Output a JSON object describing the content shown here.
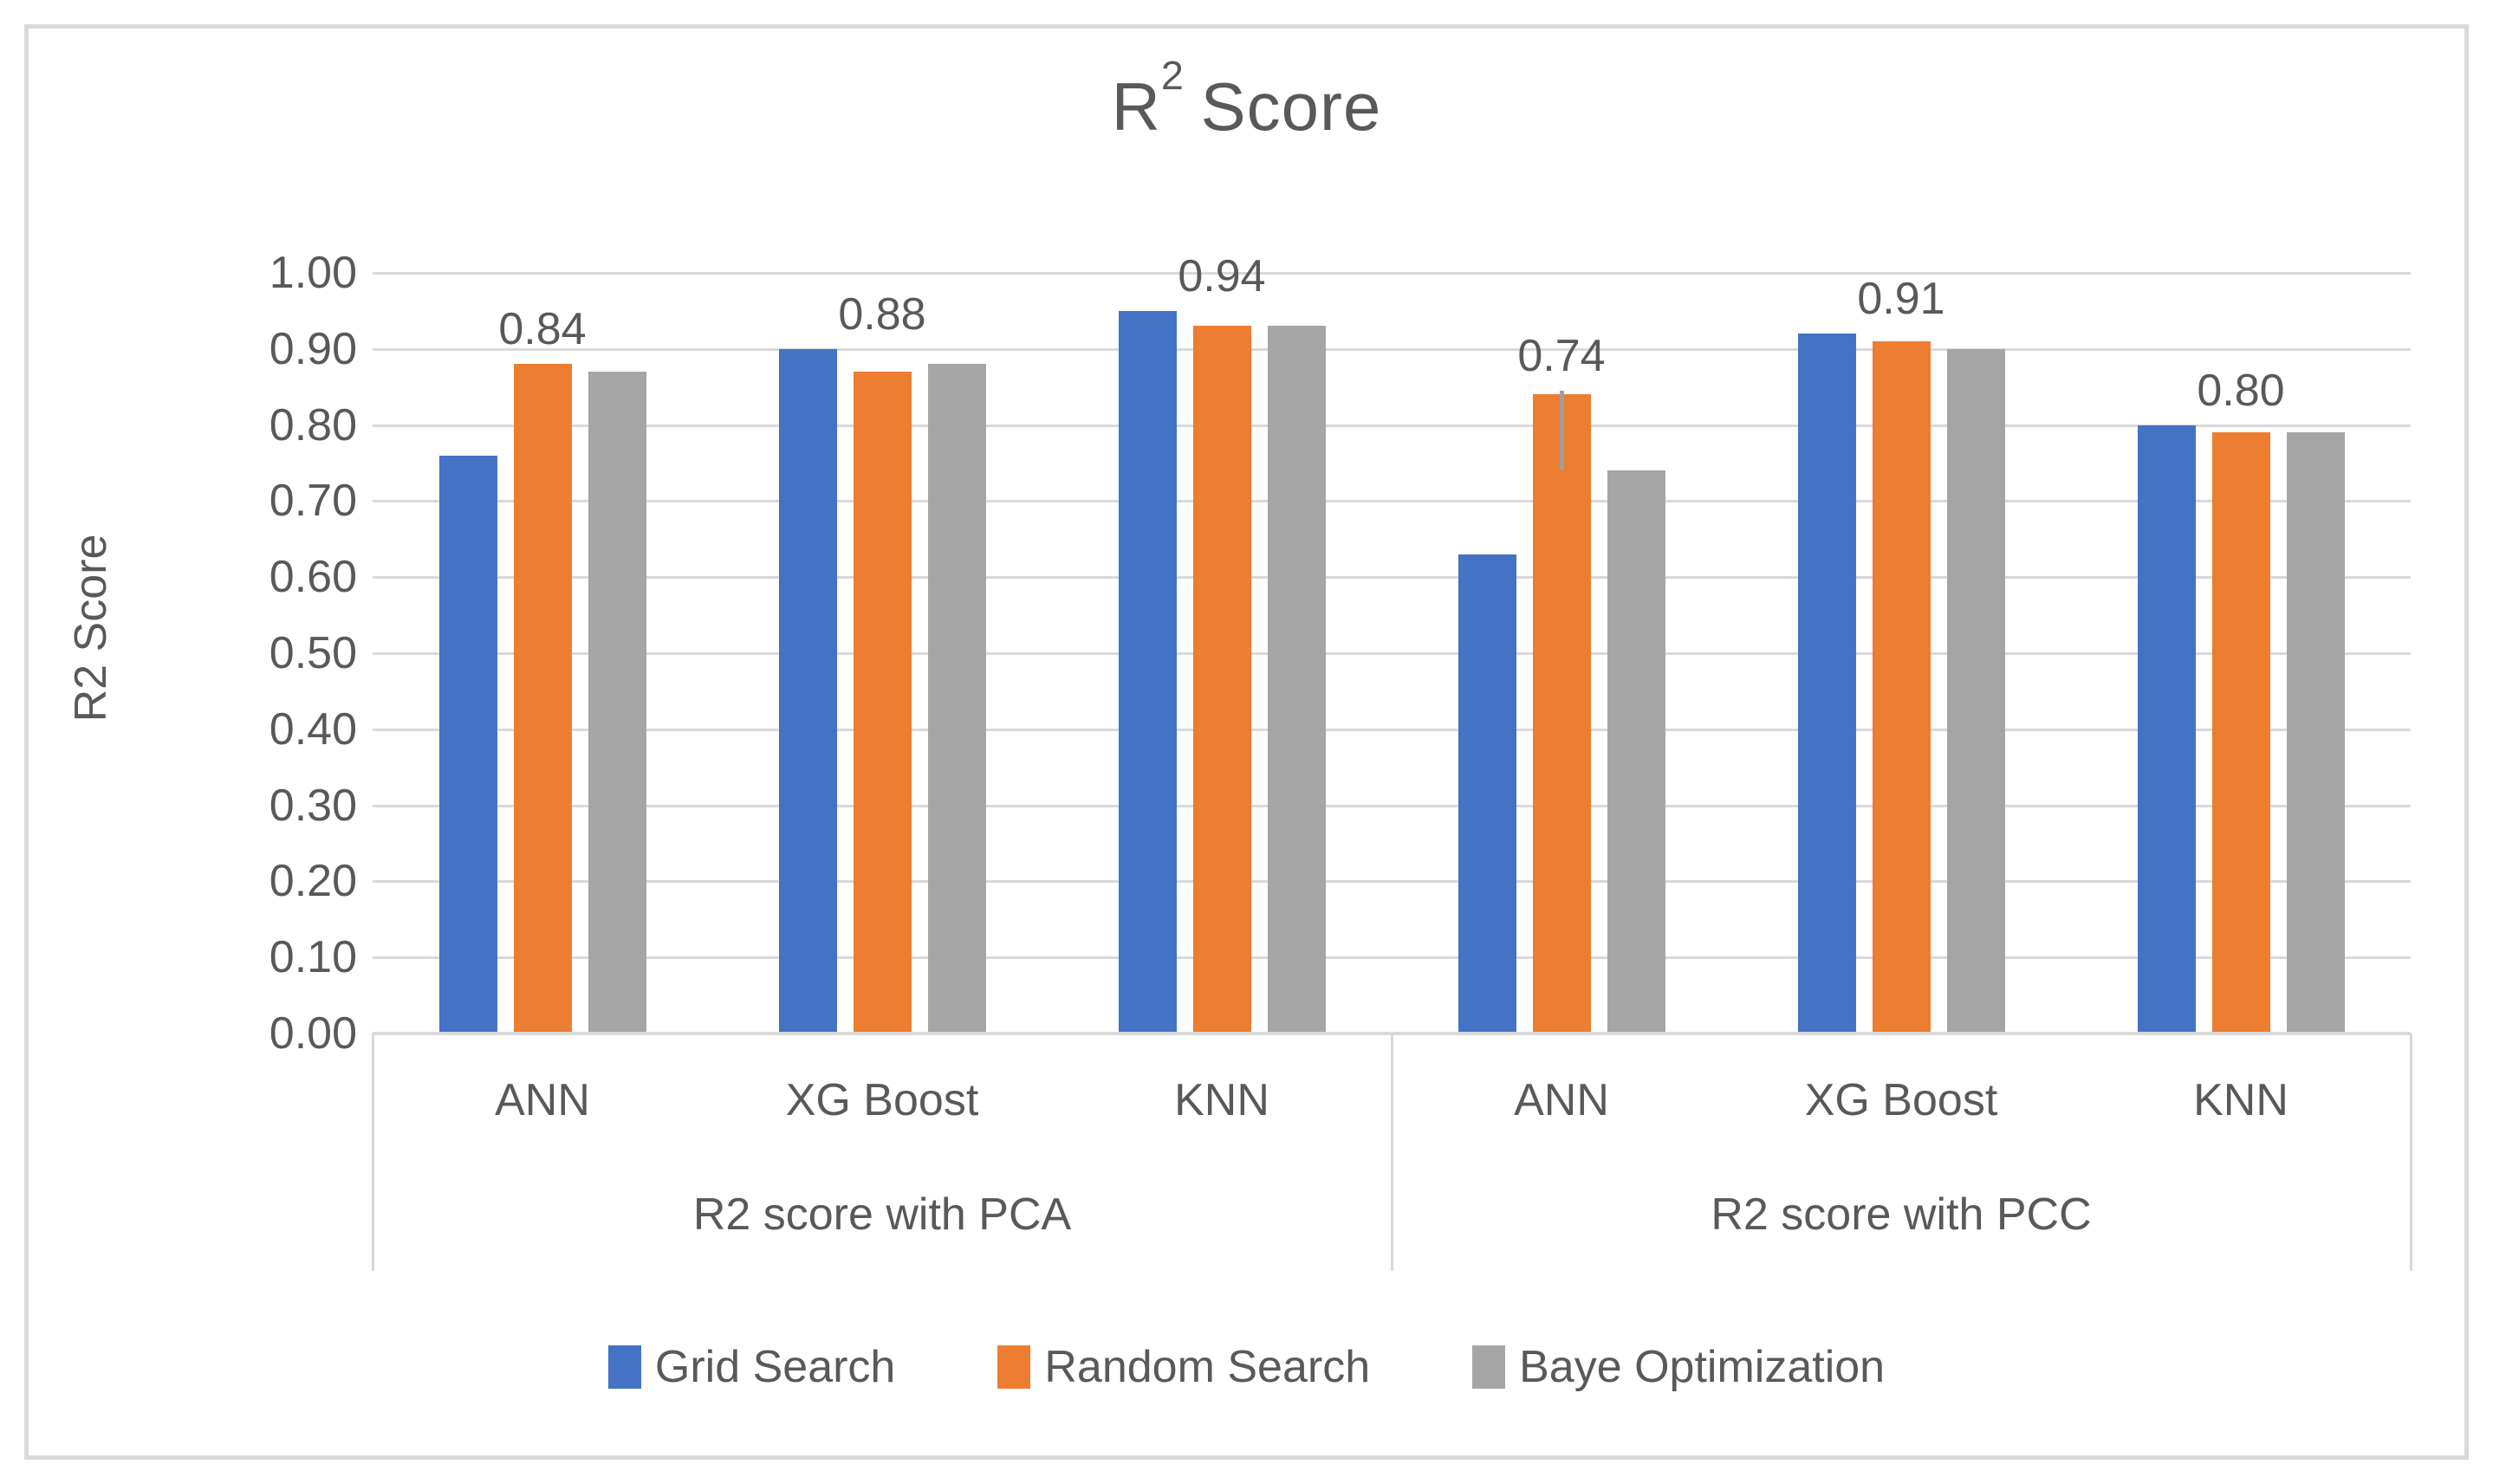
{
  "title_parts": {
    "base": "R",
    "sup": "2",
    "rest": "Score"
  },
  "chart_data": {
    "type": "bar",
    "title": "R² Score",
    "ylabel": "R2 Score",
    "ylim": [
      0.0,
      1.0
    ],
    "ytick_labels": [
      "0.00",
      "0.10",
      "0.20",
      "0.30",
      "0.40",
      "0.50",
      "0.60",
      "0.70",
      "0.80",
      "0.90",
      "1.00"
    ],
    "grid": true,
    "legend_position": "bottom",
    "categories": [
      "ANN",
      "XG Boost",
      "KNN",
      "ANN",
      "XG Boost",
      "KNN"
    ],
    "category_groups": [
      {
        "label": "R2 score with PCA",
        "span": 3
      },
      {
        "label": "R2 score with PCC",
        "span": 3
      }
    ],
    "series": [
      {
        "name": "Grid Search",
        "color": "#4472C4",
        "values": [
          0.76,
          0.9,
          0.95,
          0.63,
          0.92,
          0.8
        ]
      },
      {
        "name": "Random Search",
        "color": "#ED7D31",
        "values": [
          0.88,
          0.87,
          0.93,
          0.84,
          0.91,
          0.79
        ]
      },
      {
        "name": "Baye Optimization",
        "color": "#A5A5A5",
        "values": [
          0.87,
          0.88,
          0.93,
          0.74,
          0.9,
          0.79
        ]
      }
    ],
    "group_value_labels": [
      "0.84",
      "0.88",
      "0.94",
      "0.74",
      "0.91",
      "0.80"
    ],
    "error_bar": {
      "category_index": 3,
      "series_index": 1,
      "low": 0.74,
      "high": 0.845
    },
    "colors": {
      "grid": "#D9D9D9",
      "axis": "#D9D9D9",
      "text": "#595959",
      "error_bar": "#9E9E9E"
    }
  }
}
